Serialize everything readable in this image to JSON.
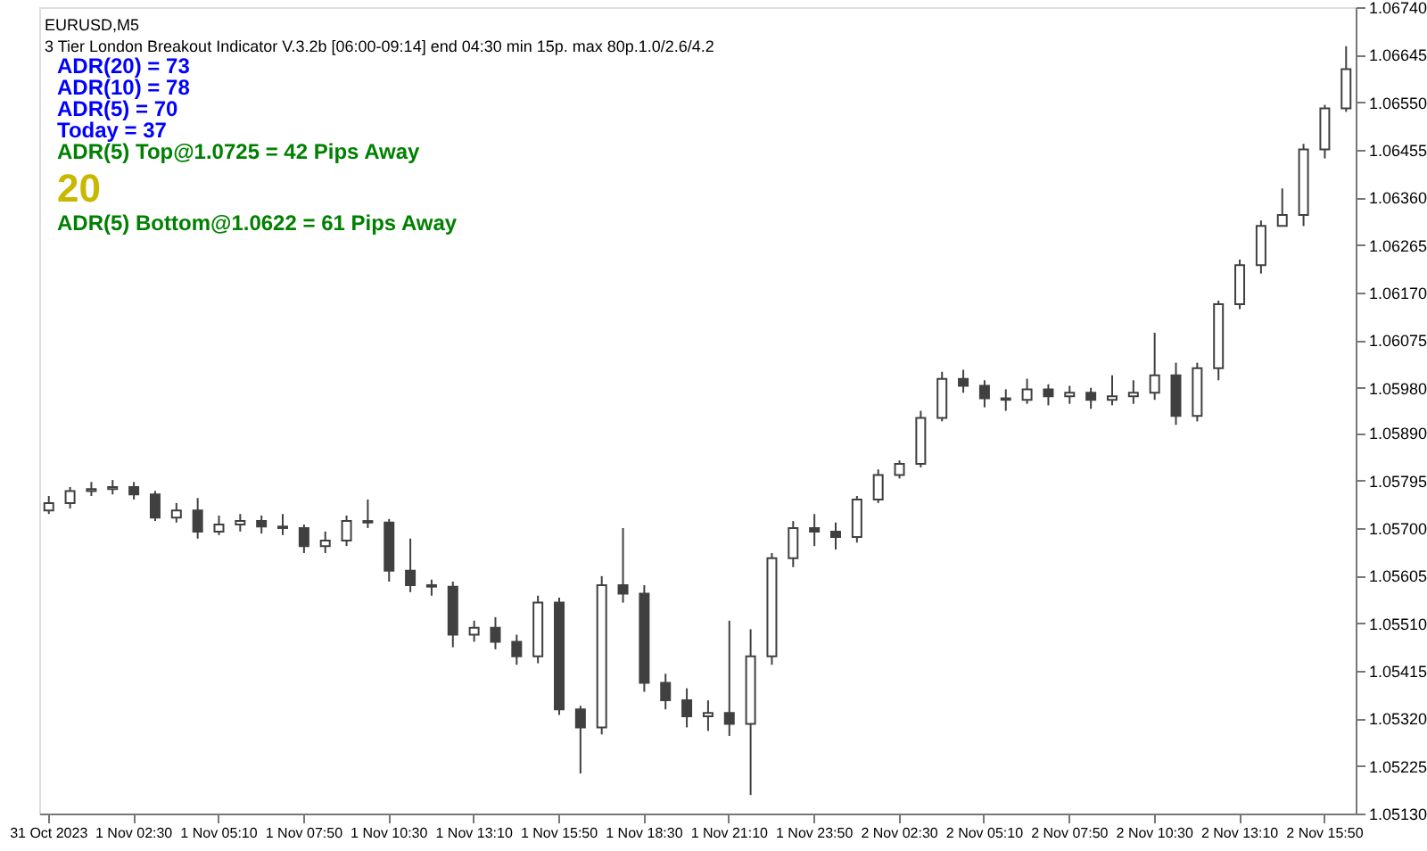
{
  "chart_data": {
    "type": "candlestick",
    "title": "EURUSD,M5",
    "subtitle": "3 Tier London Breakout Indicator V.3.2b [06:00-09:14] end 04:30 min 15p. max 80p.1.0/2.6/4.2",
    "annotations": [
      "ADR(20) = 73",
      "ADR(10) = 78",
      "ADR(5)   = 70",
      "Today    = 37",
      "ADR(5) Top@1.0725 = 42 Pips Away",
      "20",
      "ADR(5) Bottom@1.0622 = 61 Pips Away"
    ],
    "color": "#404040",
    "grid": false,
    "categories": [
      "31 Oct 2023",
      null,
      null,
      null,
      "1 Nov 02:30",
      null,
      null,
      null,
      "1 Nov 05:10",
      null,
      null,
      null,
      "1 Nov 07:50",
      null,
      null,
      null,
      "1 Nov 10:30",
      null,
      null,
      null,
      "1 Nov 13:10",
      null,
      null,
      null,
      "1 Nov 15:50",
      null,
      null,
      null,
      "1 Nov 18:30",
      null,
      null,
      null,
      "1 Nov 21:10",
      null,
      null,
      null,
      "1 Nov 23:50",
      null,
      null,
      null,
      "2 Nov 02:30",
      null,
      null,
      null,
      "2 Nov 05:10",
      null,
      null,
      null,
      "2 Nov 07:50",
      null,
      null,
      null,
      "2 Nov 10:30",
      null,
      null,
      null,
      "2 Nov 13:10",
      null,
      null,
      null,
      "2 Nov 15:50",
      null
    ],
    "ohlc": [
      [
        1.05735,
        1.05764,
        1.05728,
        1.0575
      ],
      [
        1.0575,
        1.05782,
        1.05739,
        1.05774
      ],
      [
        1.05774,
        1.05792,
        1.05764,
        1.05778
      ],
      [
        1.05778,
        1.05796,
        1.05767,
        1.05782
      ],
      [
        1.05782,
        1.05792,
        1.05757,
        1.05767
      ],
      [
        1.05767,
        1.05774,
        1.05714,
        1.05721
      ],
      [
        1.05721,
        1.0575,
        1.05711,
        1.05735
      ],
      [
        1.05735,
        1.0576,
        1.05679,
        1.05693
      ],
      [
        1.05693,
        1.05725,
        1.05686,
        1.05707
      ],
      [
        1.05707,
        1.05728,
        1.05693,
        1.05714
      ],
      [
        1.05714,
        1.05725,
        1.05689,
        1.05703
      ],
      [
        1.05703,
        1.05728,
        1.05686,
        1.057
      ],
      [
        1.057,
        1.05707,
        1.0565,
        1.05664
      ],
      [
        1.05664,
        1.05693,
        1.0565,
        1.05675
      ],
      [
        1.05675,
        1.05725,
        1.05664,
        1.05714
      ],
      [
        1.05714,
        1.05757,
        1.057,
        1.05711
      ],
      [
        1.05711,
        1.05718,
        1.05593,
        1.05615
      ],
      [
        1.05615,
        1.05679,
        1.05572,
        1.05586
      ],
      [
        1.05586,
        1.05597,
        1.05565,
        1.05583
      ],
      [
        1.05583,
        1.05593,
        1.05462,
        1.05487
      ],
      [
        1.05487,
        1.05515,
        1.05473,
        1.05501
      ],
      [
        1.05501,
        1.05522,
        1.05458,
        1.05473
      ],
      [
        1.05473,
        1.05487,
        1.05427,
        1.05444
      ],
      [
        1.05444,
        1.05565,
        1.0543,
        1.05551
      ],
      [
        1.05551,
        1.05561,
        1.05327,
        1.05338
      ],
      [
        1.05338,
        1.05345,
        1.0521,
        1.05302
      ],
      [
        1.05302,
        1.05604,
        1.05288,
        1.05586
      ],
      [
        1.05586,
        1.057,
        1.05551,
        1.05569
      ],
      [
        1.05569,
        1.05586,
        1.05373,
        1.05391
      ],
      [
        1.05391,
        1.05409,
        1.05338,
        1.05356
      ],
      [
        1.05356,
        1.0538,
        1.05302,
        1.05324
      ],
      [
        1.05324,
        1.05356,
        1.05295,
        1.05331
      ],
      [
        1.05331,
        1.05515,
        1.05285,
        1.05309
      ],
      [
        1.05309,
        1.05498,
        1.05167,
        1.05444
      ],
      [
        1.05444,
        1.0565,
        1.05427,
        1.0564
      ],
      [
        1.0564,
        1.05714,
        1.05622,
        1.057
      ],
      [
        1.057,
        1.05728,
        1.05664,
        1.05693
      ],
      [
        1.05693,
        1.05711,
        1.05657,
        1.05682
      ],
      [
        1.05682,
        1.05764,
        1.05671,
        1.05757
      ],
      [
        1.05757,
        1.05817,
        1.0575,
        1.05806
      ],
      [
        1.05806,
        1.05835,
        1.05799,
        1.05828
      ],
      [
        1.05828,
        1.05934,
        1.05821,
        1.0592
      ],
      [
        1.0592,
        1.06012,
        1.05913,
        1.05998
      ],
      [
        1.05998,
        1.06016,
        1.0597,
        1.05984
      ],
      [
        1.05984,
        1.05995,
        1.05941,
        1.05959
      ],
      [
        1.05959,
        1.05977,
        1.05934,
        1.05956
      ],
      [
        1.05956,
        1.05998,
        1.05948,
        1.05977
      ],
      [
        1.05977,
        1.05987,
        1.05945,
        1.05963
      ],
      [
        1.05963,
        1.05984,
        1.05948,
        1.0597
      ],
      [
        1.0597,
        1.0598,
        1.05938,
        1.05956
      ],
      [
        1.05956,
        1.06005,
        1.05945,
        1.05963
      ],
      [
        1.05963,
        1.05995,
        1.05948,
        1.0597
      ],
      [
        1.0597,
        1.0609,
        1.05956,
        1.06005
      ],
      [
        1.06005,
        1.0603,
        1.05906,
        1.05924
      ],
      [
        1.05924,
        1.0603,
        1.05913,
        1.06019
      ],
      [
        1.06019,
        1.06154,
        1.05995,
        1.06147
      ],
      [
        1.06147,
        1.06236,
        1.06137,
        1.06225
      ],
      [
        1.06225,
        1.06314,
        1.06208,
        1.06303
      ],
      [
        1.06303,
        1.06378,
        1.06303,
        1.06325
      ],
      [
        1.06325,
        1.06467,
        1.06303,
        1.06456
      ],
      [
        1.06456,
        1.06545,
        1.06438,
        1.06538
      ],
      [
        1.06538,
        1.06662,
        1.06531,
        1.06616
      ]
    ],
    "ylim": [
      1.0513,
      1.0674
    ],
    "yticks": [
      {
        "value": 1.0674,
        "label": "1.06740"
      },
      {
        "value": 1.06645,
        "label": "1.06645"
      },
      {
        "value": 1.0655,
        "label": "1.06550"
      },
      {
        "value": 1.06455,
        "label": "1.06455"
      },
      {
        "value": 1.0636,
        "label": "1.06360"
      },
      {
        "value": 1.06265,
        "label": "1.06265"
      },
      {
        "value": 1.0617,
        "label": "1.06170"
      },
      {
        "value": 1.06075,
        "label": "1.06075"
      },
      {
        "value": 1.0598,
        "label": "1.05980"
      },
      {
        "value": 1.0589,
        "label": "1.05890"
      },
      {
        "value": 1.05795,
        "label": "1.05795"
      },
      {
        "value": 1.057,
        "label": "1.05700"
      },
      {
        "value": 1.05605,
        "label": "1.05605"
      },
      {
        "value": 1.0551,
        "label": "1.05510"
      },
      {
        "value": 1.05415,
        "label": "1.05415"
      },
      {
        "value": 1.0532,
        "label": "1.05320"
      },
      {
        "value": 1.05225,
        "label": "1.05225"
      },
      {
        "value": 1.0513,
        "label": "1.05130"
      }
    ]
  }
}
